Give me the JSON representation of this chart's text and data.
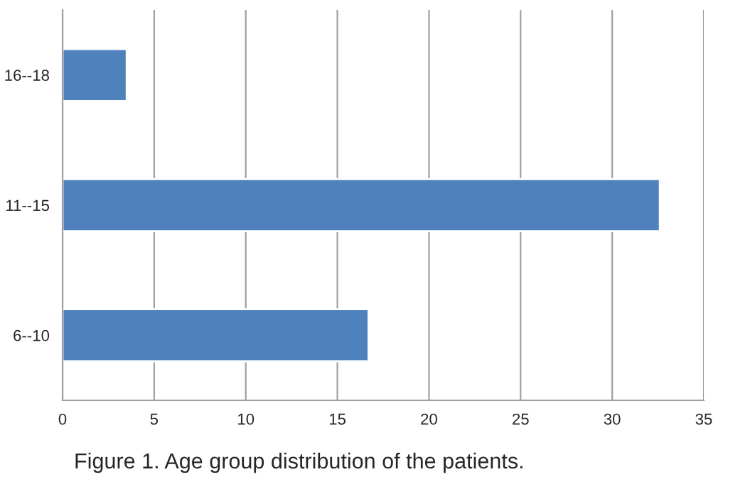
{
  "chart_data": {
    "type": "bar",
    "orientation": "horizontal",
    "categories": [
      "16--18",
      "11--15",
      "6--10"
    ],
    "values": [
      3.5,
      32.6,
      16.7
    ],
    "color": "#4f81bd",
    "xlim": [
      0,
      35
    ],
    "xticks": [
      0,
      5,
      10,
      15,
      20,
      25,
      30,
      35
    ],
    "grid": "x",
    "annotations": [
      "Figure 1. Age group distribution of the patients."
    ]
  }
}
